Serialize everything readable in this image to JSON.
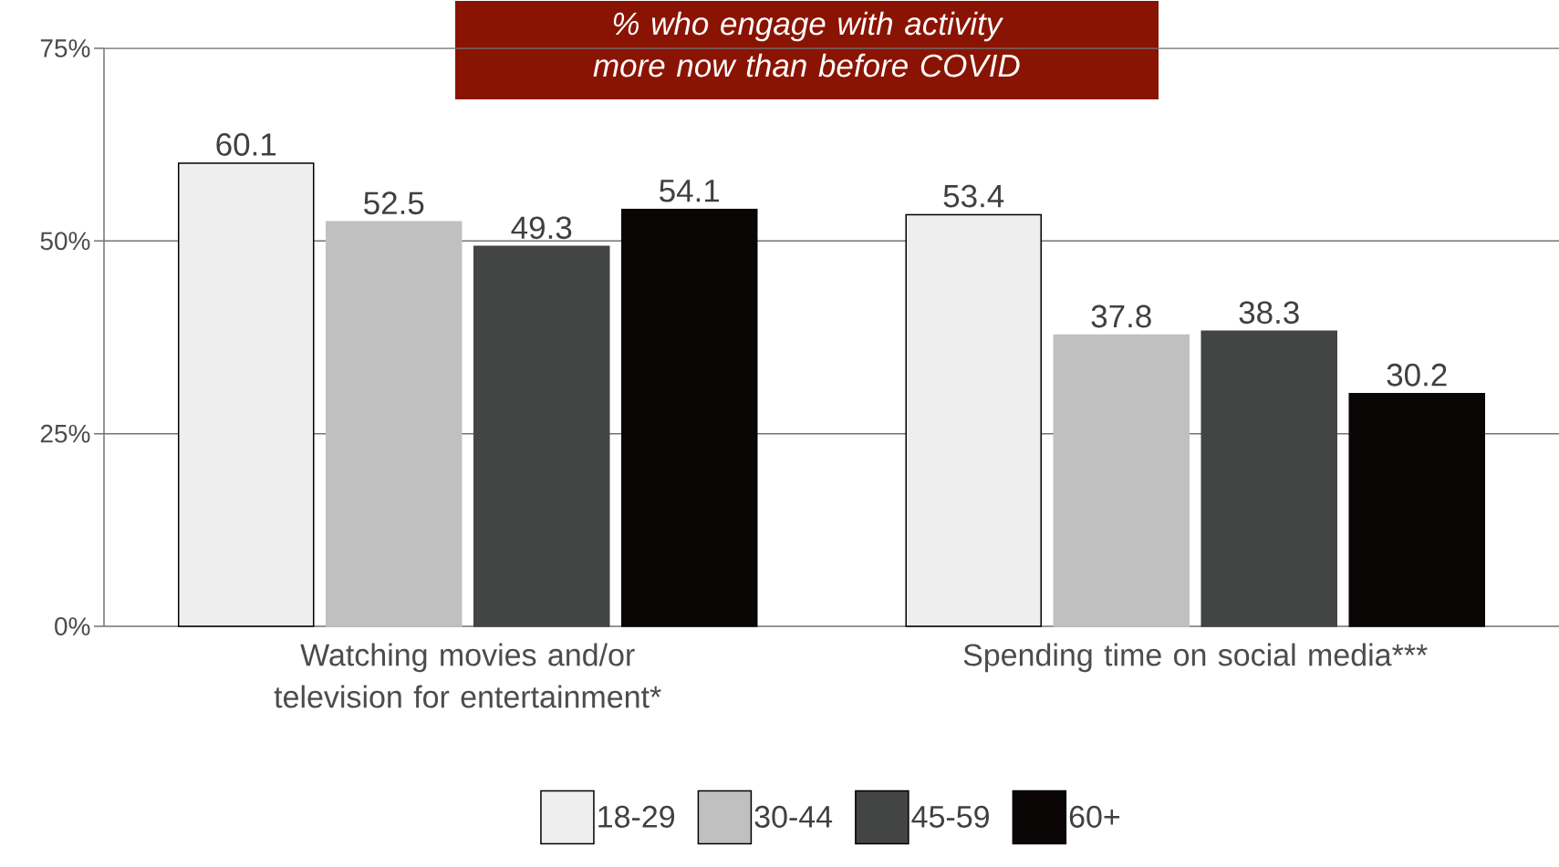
{
  "chart_data": {
    "type": "bar",
    "title": "% who engage with activity more now than before COVID",
    "categories": [
      "Watching movies and/or television for entertainment*",
      "Spending time on social media***"
    ],
    "series": [
      {
        "name": "18-29",
        "color": "#eeeeee",
        "values": [
          60.1,
          53.4
        ]
      },
      {
        "name": "30-44",
        "color": "#bfc0bf",
        "values": [
          52.5,
          37.8
        ]
      },
      {
        "name": "45-59",
        "color": "#424544",
        "values": [
          49.3,
          38.3
        ]
      },
      {
        "name": "60+",
        "color": "#0b0606",
        "values": [
          54.1,
          30.2
        ]
      }
    ],
    "ylim": [
      0,
      75
    ],
    "yticks": [
      {
        "value": 0,
        "label": "0%"
      },
      {
        "value": 25,
        "label": "25%"
      },
      {
        "value": 50,
        "label": "50%"
      },
      {
        "value": 75,
        "label": "75%"
      }
    ],
    "grid": "y",
    "legend": "bottom",
    "data_labels": true
  }
}
